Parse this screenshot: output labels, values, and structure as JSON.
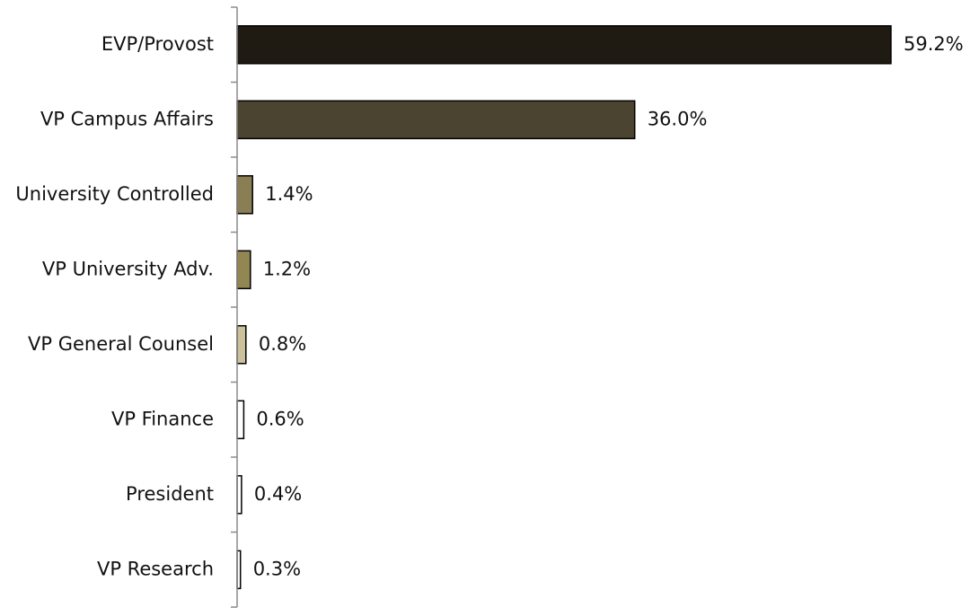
{
  "chart_data": {
    "type": "bar",
    "orientation": "horizontal",
    "title": "",
    "xlabel": "",
    "ylabel": "",
    "categories": [
      "EVP/Provost",
      "VP Campus Affairs",
      "University Controlled",
      "VP University Adv.",
      "VP General Counsel",
      "VP Finance",
      "President",
      "VP Research"
    ],
    "values": [
      59.2,
      36.0,
      1.4,
      1.2,
      0.8,
      0.6,
      0.4,
      0.3
    ],
    "value_labels": [
      "59.2%",
      "36.0%",
      "1.4%",
      "1.2%",
      "0.8%",
      "0.6%",
      "0.4%",
      "0.3%"
    ],
    "unit": "%",
    "xlim": [
      0,
      59.2
    ],
    "grid": false,
    "legend": "none",
    "colors": [
      "#1f1b12",
      "#4b4430",
      "#8a7e55",
      "#928653",
      "#cbc19b",
      "#ffffff",
      "#ffffff",
      "#ffffff"
    ],
    "bar_outline_color": "#000000",
    "axis_color": "#8c8c8c"
  }
}
